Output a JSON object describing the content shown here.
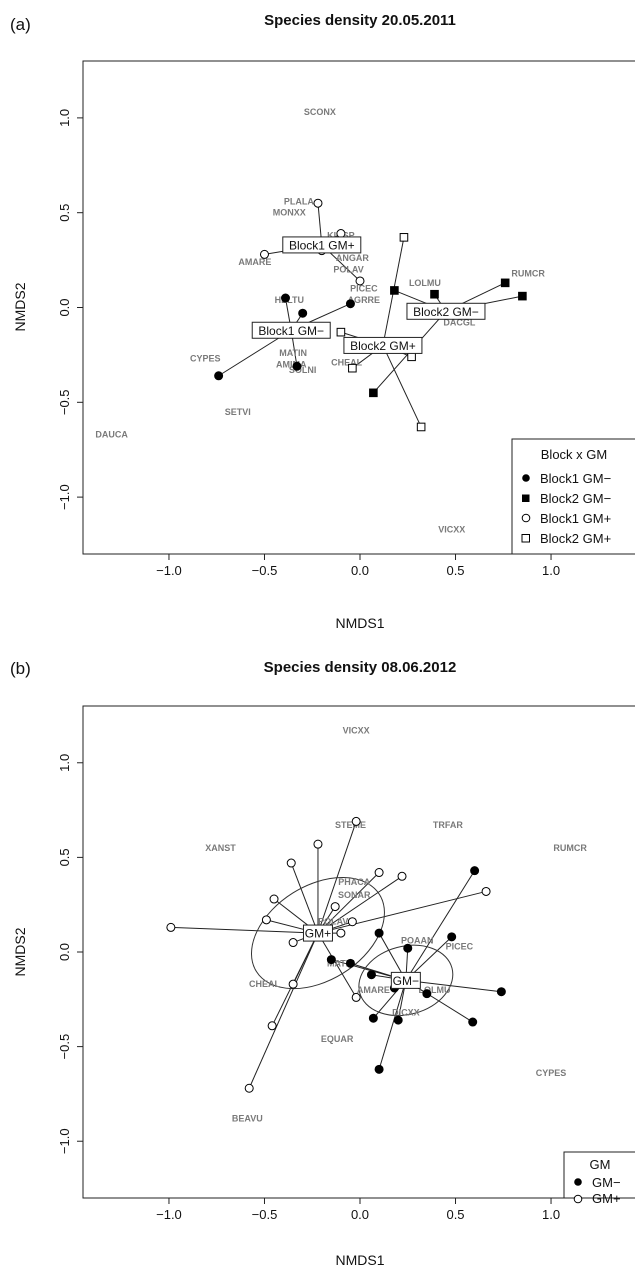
{
  "chart_data": [
    {
      "type": "scatter",
      "panel_label": "(a)",
      "title": "Species density 20.05.2011",
      "xlabel": "NMDS1",
      "ylabel": "NMDS2",
      "xlim": [
        -1.45,
        1.45
      ],
      "ylim": [
        -1.3,
        1.3
      ],
      "xticks": [
        "-1.0",
        "-0.5",
        "0.0",
        "0.5",
        "1.0"
      ],
      "yticks": [
        "-1.0",
        "-0.5",
        "0.0",
        "0.5",
        "1.0"
      ],
      "grid": false,
      "legend": {
        "title": "Block x GM",
        "placement": "bottom-right",
        "entries": [
          "Block1 GM−",
          "Block2 GM−",
          "Block1 GM+",
          "Block2 GM+"
        ]
      },
      "species": [
        {
          "label": "SCONX",
          "x": -0.21,
          "y": 1.03
        },
        {
          "label": "PLALA",
          "x": -0.32,
          "y": 0.56
        },
        {
          "label": "MONXX",
          "x": -0.37,
          "y": 0.5
        },
        {
          "label": "KICSP",
          "x": -0.1,
          "y": 0.38
        },
        {
          "label": "ANGAR",
          "x": -0.04,
          "y": 0.26
        },
        {
          "label": "AMARE",
          "x": -0.55,
          "y": 0.24
        },
        {
          "label": "POLAV",
          "x": -0.06,
          "y": 0.2
        },
        {
          "label": "PICEC",
          "x": 0.02,
          "y": 0.1
        },
        {
          "label": "LOLMU",
          "x": 0.34,
          "y": 0.13
        },
        {
          "label": "RUMCR",
          "x": 0.88,
          "y": 0.18
        },
        {
          "label": "AGRRE",
          "x": 0.02,
          "y": 0.04
        },
        {
          "label": "HELTU",
          "x": -0.37,
          "y": 0.04
        },
        {
          "label": "DACGL",
          "x": 0.52,
          "y": -0.08
        },
        {
          "label": "MATIN",
          "x": -0.35,
          "y": -0.24
        },
        {
          "label": "AMIMA",
          "x": -0.36,
          "y": -0.3
        },
        {
          "label": "CHEAL",
          "x": -0.07,
          "y": -0.29
        },
        {
          "label": "SOLNI",
          "x": -0.3,
          "y": -0.33
        },
        {
          "label": "CYPES",
          "x": -0.81,
          "y": -0.27
        },
        {
          "label": "SETVI",
          "x": -0.64,
          "y": -0.55
        },
        {
          "label": "DAUCA",
          "x": -1.3,
          "y": -0.67
        },
        {
          "label": "VICXX",
          "x": 0.48,
          "y": -1.17
        }
      ],
      "centroids": [
        {
          "label": "Block1 GM+",
          "x": -0.2,
          "y": 0.33
        },
        {
          "label": "Block1 GM−",
          "x": -0.36,
          "y": -0.12
        },
        {
          "label": "Block2 GM−",
          "x": 0.45,
          "y": -0.02
        },
        {
          "label": "Block2 GM+",
          "x": 0.12,
          "y": -0.2
        }
      ],
      "series": [
        {
          "name": "Block1 GM−",
          "marker": "filled-circle",
          "points": [
            [
              -0.39,
              0.05
            ],
            [
              -0.3,
              -0.03
            ],
            [
              -0.05,
              0.02
            ],
            [
              -0.33,
              -0.31
            ],
            [
              -0.74,
              -0.36
            ]
          ]
        },
        {
          "name": "Block2 GM−",
          "marker": "filled-square",
          "points": [
            [
              0.18,
              0.09
            ],
            [
              0.39,
              0.07
            ],
            [
              0.76,
              0.13
            ],
            [
              0.85,
              0.06
            ],
            [
              0.07,
              -0.45
            ]
          ]
        },
        {
          "name": "Block1 GM+",
          "marker": "open-circle",
          "points": [
            [
              -0.22,
              0.55
            ],
            [
              -0.1,
              0.39
            ],
            [
              -0.2,
              0.3
            ],
            [
              -0.5,
              0.28
            ],
            [
              0.0,
              0.14
            ]
          ]
        },
        {
          "name": "Block2 GM+",
          "marker": "open-square",
          "points": [
            [
              0.23,
              0.37
            ],
            [
              -0.1,
              -0.13
            ],
            [
              -0.04,
              -0.32
            ],
            [
              0.27,
              -0.26
            ],
            [
              0.32,
              -0.63
            ]
          ]
        }
      ]
    },
    {
      "type": "scatter",
      "panel_label": "(b)",
      "title": "Species density 08.06.2012",
      "xlabel": "NMDS1",
      "ylabel": "NMDS2",
      "xlim": [
        -1.45,
        1.45
      ],
      "ylim": [
        -1.3,
        1.3
      ],
      "xticks": [
        "-1.0",
        "-0.5",
        "0.0",
        "0.5",
        "1.0"
      ],
      "yticks": [
        "-1.0",
        "-0.5",
        "0.0",
        "0.5",
        "1.0"
      ],
      "grid": false,
      "legend": {
        "title": "GM",
        "placement": "bottom-right",
        "entries": [
          "GM−",
          "GM+"
        ]
      },
      "species": [
        {
          "label": "VICXX",
          "x": -0.02,
          "y": 1.17
        },
        {
          "label": "STEME",
          "x": -0.05,
          "y": 0.67
        },
        {
          "label": "TRFAR",
          "x": 0.46,
          "y": 0.67
        },
        {
          "label": "XANST",
          "x": -0.73,
          "y": 0.55
        },
        {
          "label": "RUMCR",
          "x": 1.1,
          "y": 0.55
        },
        {
          "label": "PHACA",
          "x": -0.03,
          "y": 0.37
        },
        {
          "label": "SONAR",
          "x": -0.03,
          "y": 0.3
        },
        {
          "label": "POLAV",
          "x": -0.14,
          "y": 0.16
        },
        {
          "label": "POAAN",
          "x": 0.3,
          "y": 0.06
        },
        {
          "label": "PICEC",
          "x": 0.52,
          "y": 0.03
        },
        {
          "label": "MATIN",
          "x": -0.1,
          "y": -0.06
        },
        {
          "label": "AMARE",
          "x": 0.07,
          "y": -0.2
        },
        {
          "label": "LOLMU",
          "x": 0.39,
          "y": -0.2
        },
        {
          "label": "DICXX",
          "x": 0.24,
          "y": -0.32
        },
        {
          "label": "CHEAL",
          "x": -0.5,
          "y": -0.17
        },
        {
          "label": "EQUAR",
          "x": -0.12,
          "y": -0.46
        },
        {
          "label": "CYPES",
          "x": 1.0,
          "y": -0.64
        },
        {
          "label": "BEAVU",
          "x": -0.59,
          "y": -0.88
        }
      ],
      "centroids": [
        {
          "label": "GM+",
          "x": -0.22,
          "y": 0.1
        },
        {
          "label": "GM−",
          "x": 0.24,
          "y": -0.15
        }
      ],
      "series": [
        {
          "name": "GM−",
          "marker": "filled-circle",
          "points": [
            [
              0.6,
              0.43
            ],
            [
              0.1,
              0.1
            ],
            [
              0.25,
              0.02
            ],
            [
              0.48,
              0.08
            ],
            [
              -0.15,
              -0.04
            ],
            [
              -0.05,
              -0.06
            ],
            [
              0.06,
              -0.12
            ],
            [
              0.18,
              -0.19
            ],
            [
              0.35,
              -0.22
            ],
            [
              0.74,
              -0.21
            ],
            [
              0.59,
              -0.37
            ],
            [
              0.07,
              -0.35
            ],
            [
              0.2,
              -0.36
            ],
            [
              0.1,
              -0.62
            ]
          ]
        },
        {
          "name": "GM+",
          "marker": "open-circle",
          "points": [
            [
              -0.22,
              0.57
            ],
            [
              -0.02,
              0.69
            ],
            [
              -0.36,
              0.47
            ],
            [
              0.1,
              0.42
            ],
            [
              0.22,
              0.4
            ],
            [
              0.66,
              0.32
            ],
            [
              -0.45,
              0.28
            ],
            [
              -0.13,
              0.24
            ],
            [
              -0.49,
              0.17
            ],
            [
              -0.04,
              0.16
            ],
            [
              -0.99,
              0.13
            ],
            [
              -0.1,
              0.1
            ],
            [
              -0.35,
              0.05
            ],
            [
              -0.35,
              -0.17
            ],
            [
              -0.02,
              -0.24
            ],
            [
              -0.46,
              -0.39
            ],
            [
              -0.58,
              -0.72
            ]
          ]
        }
      ],
      "ellipses": [
        {
          "group": "GM+",
          "cx": -0.22,
          "cy": 0.1,
          "rx": 0.38,
          "ry": 0.25,
          "angle_deg": 32
        },
        {
          "group": "GM−",
          "cx": 0.24,
          "cy": -0.15,
          "rx": 0.25,
          "ry": 0.18,
          "angle_deg": 15
        }
      ]
    }
  ]
}
